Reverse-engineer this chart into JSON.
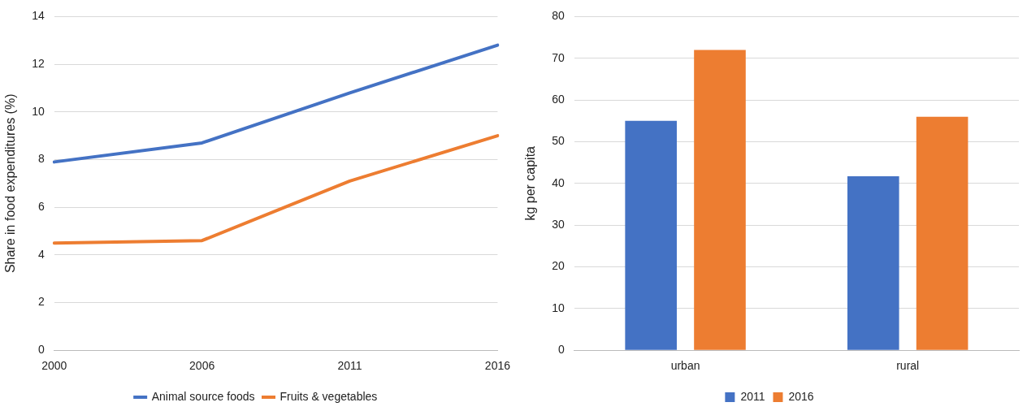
{
  "chart_data": [
    {
      "type": "line",
      "categories": [
        "2000",
        "2006",
        "2011",
        "2016"
      ],
      "series": [
        {
          "name": "Animal source foods",
          "color": "#4472c4",
          "values": [
            7.9,
            8.7,
            10.8,
            12.8
          ]
        },
        {
          "name": "Fruits & vegetables",
          "color": "#ed7d31",
          "values": [
            4.5,
            4.6,
            7.1,
            9.0
          ]
        }
      ],
      "ylabel": "Share in food expenditures (%)",
      "ylim": [
        0,
        14
      ],
      "yticks": [
        0,
        2,
        4,
        6,
        8,
        10,
        12,
        14
      ],
      "grid": "y",
      "legend": "bottom",
      "marker": "none"
    },
    {
      "type": "bar",
      "categories": [
        "urban",
        "rural"
      ],
      "series": [
        {
          "name": "2011",
          "color": "#4472c4",
          "values": [
            55,
            41.7
          ]
        },
        {
          "name": "2016",
          "color": "#ed7d31",
          "values": [
            72,
            56
          ]
        }
      ],
      "ylabel": "kg per capita",
      "ylim": [
        0,
        80
      ],
      "yticks": [
        0,
        10,
        20,
        30,
        40,
        50,
        60,
        70,
        80
      ],
      "grid": "y",
      "legend": "bottom"
    }
  ]
}
